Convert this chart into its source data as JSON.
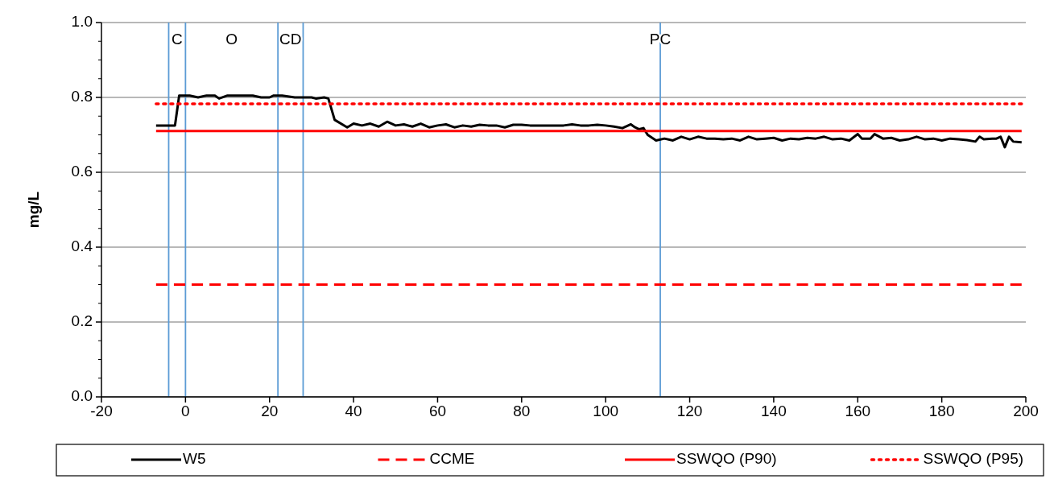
{
  "chart_data": {
    "type": "line",
    "ylabel": "mg/L",
    "xlim": [
      -20,
      200
    ],
    "ylim": [
      0,
      1
    ],
    "xticks": [
      -20,
      0,
      20,
      40,
      60,
      80,
      100,
      120,
      140,
      160,
      180,
      200
    ],
    "yticks": [
      {
        "value": 0,
        "label": "0.0"
      },
      0.2,
      0.4,
      0.6,
      0.8,
      {
        "value": 1,
        "label": "1.0"
      }
    ],
    "grid": "y",
    "legend": "bottom",
    "marker": "none",
    "series": [
      {
        "name": "W5",
        "color": "#000000",
        "line_style": "solid",
        "x": [
          -7,
          -2.5,
          -1.5,
          1,
          3,
          5,
          7,
          8,
          10,
          13,
          16,
          18,
          20,
          21,
          23,
          26,
          28,
          30,
          31,
          33,
          34,
          35.5,
          38.5,
          40,
          42,
          44,
          46,
          48,
          50,
          52,
          54,
          56,
          58,
          60,
          62,
          64,
          66,
          68,
          70,
          72,
          74,
          76,
          78,
          80,
          82,
          84,
          86,
          88,
          90,
          92,
          94,
          96,
          98,
          100,
          102,
          104,
          106,
          107,
          108,
          109,
          110,
          112,
          114,
          116,
          118,
          120,
          122,
          124,
          126,
          128,
          130,
          132,
          134,
          136,
          138,
          140,
          142,
          144,
          146,
          148,
          150,
          152,
          154,
          156,
          158,
          160,
          161,
          163,
          164,
          166,
          168,
          170,
          172,
          174,
          176,
          178,
          180,
          182,
          184,
          186,
          188,
          189,
          190,
          192,
          193,
          194,
          195,
          196,
          197,
          199
        ],
        "values": [
          0.725,
          0.725,
          0.805,
          0.805,
          0.8,
          0.805,
          0.805,
          0.797,
          0.805,
          0.805,
          0.805,
          0.8,
          0.8,
          0.805,
          0.805,
          0.8,
          0.8,
          0.8,
          0.797,
          0.8,
          0.797,
          0.74,
          0.72,
          0.73,
          0.725,
          0.73,
          0.722,
          0.735,
          0.725,
          0.728,
          0.722,
          0.73,
          0.72,
          0.725,
          0.728,
          0.72,
          0.725,
          0.722,
          0.727,
          0.725,
          0.725,
          0.72,
          0.727,
          0.727,
          0.725,
          0.725,
          0.725,
          0.725,
          0.725,
          0.728,
          0.725,
          0.725,
          0.727,
          0.725,
          0.722,
          0.718,
          0.728,
          0.72,
          0.715,
          0.718,
          0.7,
          0.685,
          0.69,
          0.685,
          0.695,
          0.688,
          0.695,
          0.69,
          0.69,
          0.688,
          0.69,
          0.685,
          0.695,
          0.688,
          0.69,
          0.692,
          0.685,
          0.69,
          0.688,
          0.692,
          0.69,
          0.695,
          0.688,
          0.69,
          0.685,
          0.702,
          0.69,
          0.69,
          0.702,
          0.69,
          0.692,
          0.685,
          0.688,
          0.695,
          0.688,
          0.69,
          0.685,
          0.69,
          0.688,
          0.686,
          0.682,
          0.695,
          0.688,
          0.69,
          0.69,
          0.695,
          0.667,
          0.695,
          0.682,
          0.68
        ]
      },
      {
        "name": "CCME",
        "color": "#ff0000",
        "line_style": "dashed",
        "x": [
          -7,
          199
        ],
        "values": [
          0.3,
          0.3
        ]
      },
      {
        "name": "SSWQO (P90)",
        "color": "#ff0000",
        "line_style": "solid",
        "x": [
          -7,
          199
        ],
        "values": [
          0.71,
          0.71
        ]
      },
      {
        "name": "SSWQO (P95)",
        "color": "#ff0000",
        "line_style": "dotted",
        "x": [
          -7,
          199
        ],
        "values": [
          0.783,
          0.783
        ]
      }
    ],
    "ref_lines": [
      {
        "axis": "x",
        "value": -4,
        "label": null,
        "color": "#5b9bd5"
      },
      {
        "axis": "x",
        "value": 0,
        "label": null,
        "color": "#5b9bd5"
      },
      {
        "axis": "x",
        "value": 22,
        "label": null,
        "color": "#5b9bd5"
      },
      {
        "axis": "x",
        "value": 28,
        "label": null,
        "color": "#5b9bd5"
      },
      {
        "axis": "x",
        "value": 113,
        "label": null,
        "color": "#5b9bd5"
      }
    ],
    "annotations": [
      "C",
      "O",
      "CD",
      "PC"
    ]
  }
}
